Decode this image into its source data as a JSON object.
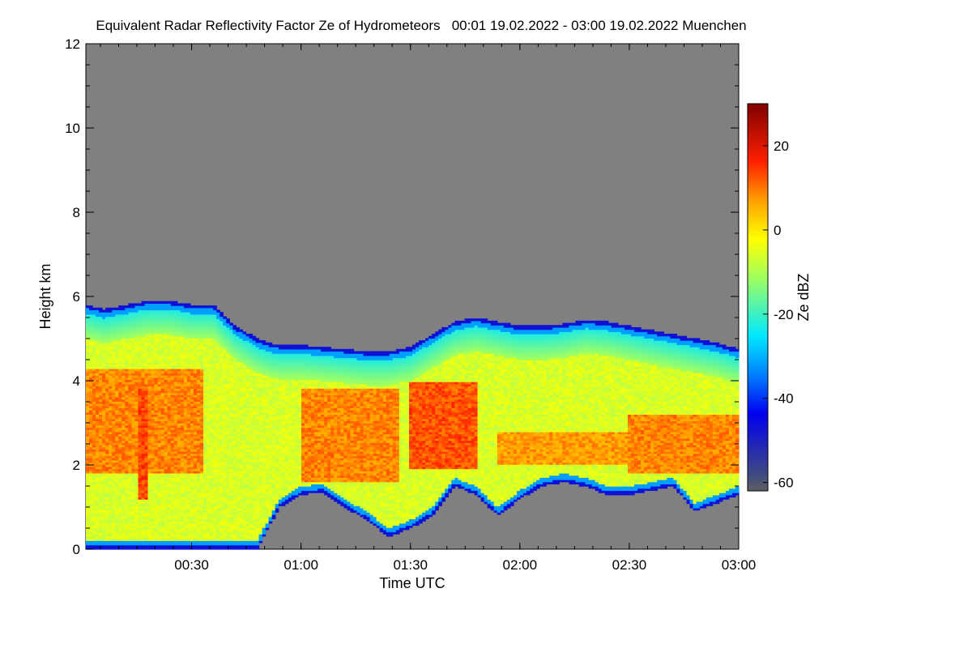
{
  "chart_data": {
    "type": "heatmap",
    "title": "Equivalent Radar Reflectivity Factor Ze of Hydrometeors   00:01 19.02.2022 - 03:00 19.02.2022 Muenchen",
    "xlabel": "Time UTC",
    "ylabel": "Height km",
    "x_range": [
      "00:01",
      "03:00"
    ],
    "x_ticks": [
      "00:30",
      "01:00",
      "01:30",
      "02:00",
      "02:30",
      "03:00"
    ],
    "ylim": [
      0,
      12
    ],
    "y_ticks": [
      "0",
      "2",
      "4",
      "6",
      "8",
      "10",
      "12"
    ],
    "colorbar": {
      "label": "Ze dBZ",
      "range": [
        -62,
        30
      ],
      "ticks": [
        "-60",
        "-40",
        "-20",
        "0",
        "20"
      ],
      "no_signal_color": "#808080"
    },
    "echo_profile": {
      "time_hours": [
        0.02,
        0.1,
        0.2,
        0.3,
        0.4,
        0.5,
        0.6,
        0.7,
        0.8,
        0.85,
        0.9,
        1.0,
        1.1,
        1.2,
        1.3,
        1.4,
        1.5,
        1.6,
        1.7,
        1.8,
        1.9,
        2.0,
        2.1,
        2.2,
        2.3,
        2.4,
        2.5,
        2.6,
        2.7,
        2.8,
        2.9,
        3.0
      ],
      "top_km": [
        5.8,
        5.7,
        5.8,
        5.9,
        5.9,
        5.8,
        5.8,
        5.3,
        5.0,
        4.9,
        4.85,
        4.85,
        4.8,
        4.75,
        4.7,
        4.7,
        4.8,
        5.1,
        5.4,
        5.5,
        5.4,
        5.3,
        5.3,
        5.35,
        5.45,
        5.4,
        5.3,
        5.2,
        5.1,
        5.0,
        4.9,
        4.75
      ],
      "base_km": [
        0.0,
        0.0,
        0.0,
        0.0,
        0.0,
        0.0,
        0.0,
        0.0,
        0.0,
        0.5,
        1.0,
        1.3,
        1.35,
        1.0,
        0.7,
        0.3,
        0.5,
        0.8,
        1.5,
        1.3,
        0.8,
        1.2,
        1.5,
        1.6,
        1.5,
        1.3,
        1.3,
        1.4,
        1.5,
        0.9,
        1.1,
        1.3
      ]
    },
    "core_regions": [
      {
        "t0": 0.02,
        "t1": 0.55,
        "h0": 1.8,
        "h1": 4.3,
        "ze": 10
      },
      {
        "t0": 0.25,
        "t1": 0.3,
        "h0": 1.2,
        "h1": 3.8,
        "ze": 15
      },
      {
        "t0": 1.0,
        "t1": 1.45,
        "h0": 1.6,
        "h1": 3.8,
        "ze": 10
      },
      {
        "t0": 1.5,
        "t1": 1.8,
        "h0": 1.9,
        "h1": 4.0,
        "ze": 14
      },
      {
        "t0": 1.9,
        "t1": 2.5,
        "h0": 2.0,
        "h1": 2.8,
        "ze": 8
      },
      {
        "t0": 2.5,
        "t1": 3.0,
        "h0": 1.8,
        "h1": 3.2,
        "ze": 10
      }
    ]
  }
}
